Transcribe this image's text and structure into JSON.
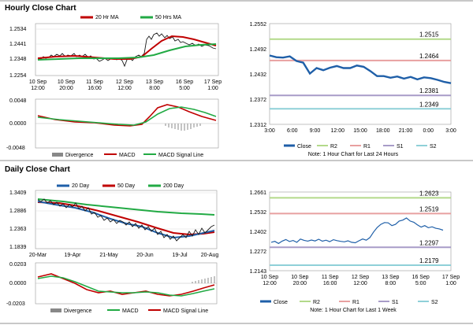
{
  "sections": {
    "hourly_title": "Hourly Close Chart",
    "daily_title": "Daily Close Chart"
  },
  "colors": {
    "close": "#1f5fa8",
    "r1": "#e8a0a0",
    "r2": "#b3d98a",
    "s1": "#a89cc8",
    "s2": "#8fd0d8",
    "ma20": "#c00000",
    "ma50": "#22aa44",
    "ma200": "#22aa44",
    "price": "#1a1a1a",
    "macd": "#c00000",
    "signal": "#22aa44",
    "divergence": "#888888"
  },
  "hourly_price": {
    "legend": [
      "20 Hr MA",
      "50 Hrs MA"
    ],
    "y_ticks": [
      "1.2534",
      "1.2441",
      "1.2348",
      "1.2254"
    ],
    "x_ticks": [
      "10 Sep\n12:00",
      "10 Sep\n20:00",
      "11 Sep\n16:00",
      "12 Sep\n12:00",
      "13 Sep\n8:00",
      "16 Sep\n5:00",
      "17 Sep\n1:00"
    ]
  },
  "hourly_macd": {
    "y_ticks": [
      "0.0048",
      "0.0000",
      "-0.0048"
    ],
    "legend": [
      "Divergence",
      "MACD",
      "MACD Signal Line"
    ]
  },
  "daily_price": {
    "legend": [
      "20 Day",
      "50 Day",
      "200 Day"
    ],
    "y_ticks": [
      "1.3409",
      "1.2886",
      "1.2363",
      "1.1839"
    ],
    "x_ticks": [
      "20-Mar",
      "19-Apr",
      "21-May",
      "20-Jun",
      "19-Jul",
      "20-Aug"
    ]
  },
  "daily_macd": {
    "y_ticks": [
      "0.0203",
      "0.0000",
      "-0.0203"
    ],
    "legend": [
      "Divergence",
      "MACD",
      "MACD Signal Line"
    ]
  },
  "chart_data": [
    {
      "type": "line",
      "panel": "hourly_pivot",
      "y_ticks": [
        "1.2552",
        "1.2492",
        "1.2432",
        "1.2372",
        "1.2312"
      ],
      "ylim": [
        1.2312,
        1.2552
      ],
      "x_ticks": [
        "3:00",
        "6:00",
        "9:00",
        "12:00",
        "15:00",
        "18:00",
        "21:00",
        "0:00",
        "3:00"
      ],
      "levels": [
        {
          "name": "R2",
          "value": 1.2515,
          "label": "1.2515"
        },
        {
          "name": "R1",
          "value": 1.2464,
          "label": "1.2464"
        },
        {
          "name": "S1",
          "value": 1.2381,
          "label": "1.2381"
        },
        {
          "name": "S2",
          "value": 1.2349,
          "label": "1.2349"
        }
      ],
      "series": [
        {
          "name": "Close",
          "values": [
            1.2476,
            1.2472,
            1.2471,
            1.2474,
            1.2463,
            1.2459,
            1.2433,
            1.2446,
            1.2441,
            1.2447,
            1.2451,
            1.2446,
            1.2446,
            1.2452,
            1.2449,
            1.2439,
            1.2427,
            1.2427,
            1.2423,
            1.2426,
            1.2421,
            1.2425,
            1.2419,
            1.2424,
            1.2422,
            1.2418,
            1.2413,
            1.241
          ]
        }
      ],
      "legend": [
        "Close",
        "R2",
        "R1",
        "S1",
        "S2"
      ],
      "note": "Note: 1 Hour Chart for Last 24 Hours"
    },
    {
      "type": "line",
      "panel": "weekly_pivot",
      "y_ticks": [
        "1.2661",
        "1.2532",
        "1.2402",
        "1.2272",
        "1.2143"
      ],
      "ylim": [
        1.2143,
        1.2661
      ],
      "x_ticks": [
        "10 Sep\n12:00",
        "10 Sep\n20:00",
        "11 Sep\n16:00",
        "12 Sep\n12:00",
        "13 Sep\n8:00",
        "16 Sep\n5:00",
        "17 Sep\n1:00"
      ],
      "levels": [
        {
          "name": "R2",
          "value": 1.2623,
          "label": "1.2623"
        },
        {
          "name": "R1",
          "value": 1.2519,
          "label": "1.2519"
        },
        {
          "name": "S1",
          "value": 1.2297,
          "label": "1.2297"
        },
        {
          "name": "S2",
          "value": 1.2179,
          "label": "1.2179"
        }
      ],
      "series": [
        {
          "name": "Close",
          "values": [
            1.233,
            1.2336,
            1.2322,
            1.2338,
            1.2348,
            1.2335,
            1.2342,
            1.233,
            1.2351,
            1.2343,
            1.2338,
            1.2345,
            1.2339,
            1.235,
            1.2337,
            1.2344,
            1.2334,
            1.2347,
            1.2341,
            1.2336,
            1.2333,
            1.234,
            1.233,
            1.2327,
            1.234,
            1.2352,
            1.2344,
            1.2361,
            1.2398,
            1.2428,
            1.2448,
            1.246,
            1.2458,
            1.244,
            1.2448,
            1.247,
            1.2476,
            1.249,
            1.247,
            1.2462,
            1.2445,
            1.243,
            1.244,
            1.2426,
            1.2432,
            1.2422,
            1.2418,
            1.241
          ]
        }
      ],
      "legend": [
        "Close",
        "R2",
        "R1",
        "S1",
        "S2"
      ],
      "note": "Note: 1 Hour Chart for Last 1 Week"
    }
  ]
}
